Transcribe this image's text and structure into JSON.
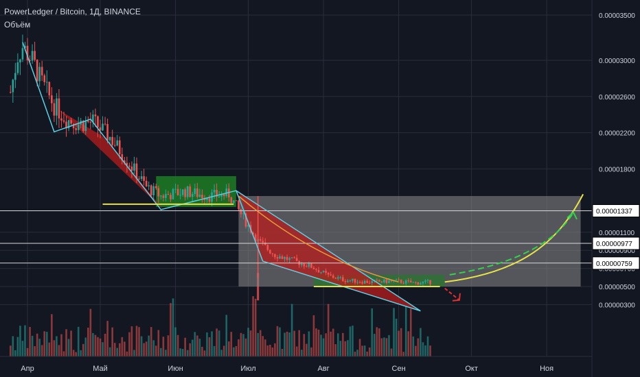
{
  "header": {
    "title": "PowerLedger / Bitcoin, 1Д, BINANCE",
    "volume_label": "Объём"
  },
  "colors": {
    "background": "#131722",
    "up": "#26a69a",
    "down": "#ef5350",
    "grid": "#2a2e39",
    "axis_text": "#d1d4dc",
    "cyan_trend": "#5ecfe3",
    "yellow_line": "#e6e34a",
    "green_arrow": "#35d24a",
    "red_arrow": "#e0302f",
    "green_zone": "#1e7d24",
    "red_zone": "#b71c1c",
    "grey_cup": "#8a8a8a"
  },
  "chart_data": {
    "type": "candlestick",
    "title": "PowerLedger / Bitcoin, 1Д, BINANCE",
    "x_tick_labels": [
      "Апр",
      "Май",
      "Июн",
      "Июл",
      "Авг",
      "Сен",
      "Окт",
      "Ноя"
    ],
    "y_tick_labels": [
      "0.00003500",
      "0.00003000",
      "0.00002600",
      "0.00002200",
      "0.00001800",
      "0.00001100",
      "0.00000900",
      "0.00000700",
      "0.00000500",
      "0.00000300"
    ],
    "ylim": [
      1.3e-06,
      3.6e-05
    ],
    "horizontal_levels": [
      {
        "label": "0.00001337",
        "value": 1.337e-05
      },
      {
        "label": "0.00000977",
        "value": 9.77e-06
      },
      {
        "label": "0.00000759",
        "value": 7.59e-06
      }
    ],
    "price_path": [
      {
        "date": "2018-03-25",
        "value": 2.65e-05
      },
      {
        "date": "2018-03-28",
        "value": 3.05e-05
      },
      {
        "date": "2018-03-30",
        "value": 3.15e-05
      },
      {
        "date": "2018-04-03",
        "value": 3e-05
      },
      {
        "date": "2018-04-07",
        "value": 2.75e-05
      },
      {
        "date": "2018-04-12",
        "value": 2.5e-05
      },
      {
        "date": "2018-04-17",
        "value": 2.35e-05
      },
      {
        "date": "2018-04-22",
        "value": 2.3e-05
      },
      {
        "date": "2018-04-28",
        "value": 2.32e-05
      },
      {
        "date": "2018-05-05",
        "value": 2.15e-05
      },
      {
        "date": "2018-05-12",
        "value": 1.9e-05
      },
      {
        "date": "2018-05-20",
        "value": 1.6e-05
      },
      {
        "date": "2018-05-26",
        "value": 1.5e-05
      },
      {
        "date": "2018-06-05",
        "value": 1.55e-05
      },
      {
        "date": "2018-06-15",
        "value": 1.5e-05
      },
      {
        "date": "2018-06-23",
        "value": 1.52e-05
      },
      {
        "date": "2018-06-28",
        "value": 1.3e-05
      },
      {
        "date": "2018-07-05",
        "value": 1e-05
      },
      {
        "date": "2018-07-12",
        "value": 8.5e-06
      },
      {
        "date": "2018-07-20",
        "value": 7.8e-06
      },
      {
        "date": "2018-07-27",
        "value": 7.2e-06
      },
      {
        "date": "2018-08-03",
        "value": 6.2e-06
      },
      {
        "date": "2018-08-10",
        "value": 5.7e-06
      },
      {
        "date": "2018-08-20",
        "value": 5.5e-06
      },
      {
        "date": "2018-08-30",
        "value": 5.6e-06
      },
      {
        "date": "2018-09-08",
        "value": 5.4e-06
      },
      {
        "date": "2018-09-15",
        "value": 5.5e-06
      }
    ],
    "annotations": {
      "green_consolidation_box": {
        "date_start": "2018-05-24",
        "date_end": "2018-06-26",
        "value_low": 1.38e-05,
        "value_high": 1.72e-05
      },
      "red_falling_wedge": [
        {
          "date": "2018-06-27",
          "value": 1.55e-05
        },
        {
          "date": "2018-09-10",
          "value": 2.3e-06
        },
        {
          "date": "2018-07-07",
          "value": 7.7e-06
        }
      ],
      "grey_cup_zone": {
        "date_start": "2018-06-27",
        "date_end": "2018-11-15",
        "value_top": 1.5e-05,
        "value_bottom": 5e-06
      },
      "support_line_1": {
        "date_start": "2018-05-02",
        "date_end": "2018-06-25",
        "value": 1.41e-05
      },
      "support_line_2": {
        "date_start": "2018-07-28",
        "date_end": "2018-09-18",
        "value": 5e-06
      }
    }
  }
}
